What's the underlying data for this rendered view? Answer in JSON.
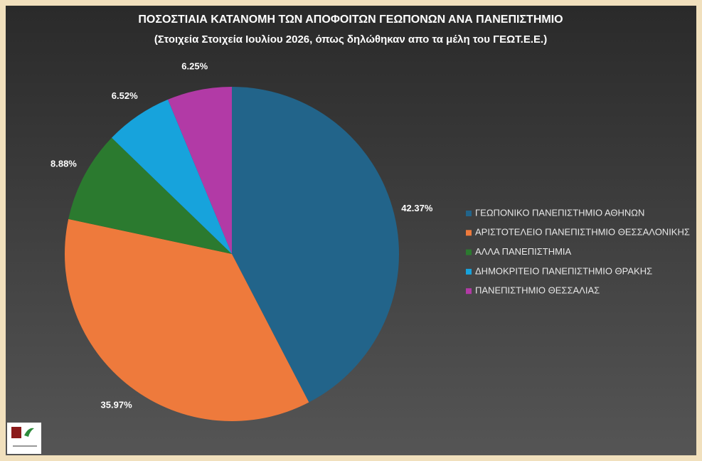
{
  "chart_data": {
    "type": "pie",
    "title": "ΠΟΣΟΣΤΙΑΙΑ ΚΑΤΑΝΟΜΗ ΤΩΝ ΑΠΟΦΟΙΤΩΝ ΓΕΩΠΟΝΩΝ ΑΝΑ ΠΑΝΕΠΙΣΤΗΜΙΟ",
    "subtitle": "(Στοιχεία Στοιχεία Ιουλίου 2026, όπως δηλώθηκαν  απο τα μέλη του ΓΕΩΤ.Ε.Ε.)",
    "categories": [
      "ΓΕΩΠΟΝΙΚΟ ΠΑΝΕΠΙΣΤΗΜΙΟ ΑΘΗΝΩΝ",
      "ΑΡΙΣΤΟΤΕΛΕΙΟ ΠΑΝΕΠΙΣΤΗΜΙΟ ΘΕΣΣΑΛΟΝΙΚΗΣ",
      "ΑΛΛΑ ΠΑΝΕΠΙΣΤΗΜΙΑ",
      "ΔΗΜΟΚΡΙΤΕΙΟ ΠΑΝΕΠΙΣΤΗΜΙΟ ΘΡΑΚΗΣ",
      "ΠΑΝΕΠΙΣΤΗΜΙΟ ΘΕΣΣΑΛΙΑΣ"
    ],
    "values": [
      42.37,
      35.97,
      8.88,
      6.52,
      6.25
    ],
    "value_labels": [
      "42.37%",
      "35.97%",
      "8.88%",
      "6.52%",
      "6.25%"
    ],
    "colors": [
      "#22648a",
      "#ee7a3c",
      "#2b7a2f",
      "#17a3dc",
      "#b23aa6"
    ],
    "legend": "right"
  }
}
